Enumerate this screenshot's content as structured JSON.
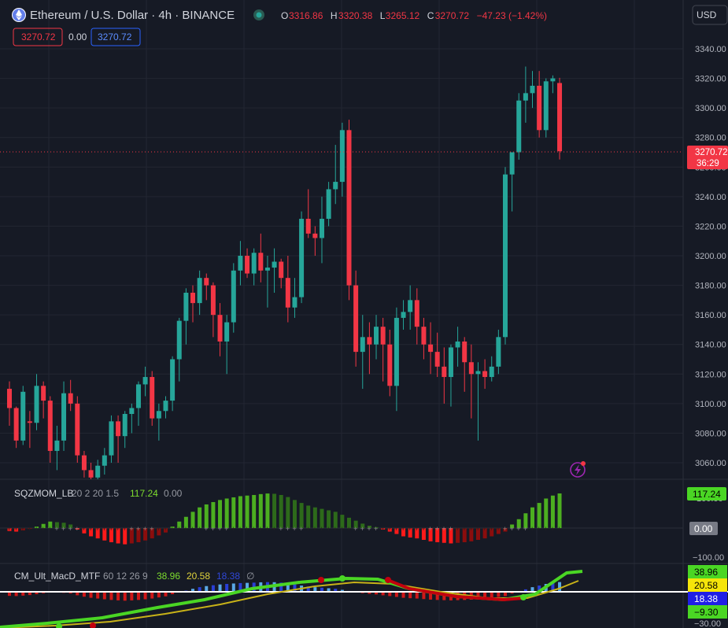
{
  "header": {
    "symbol_title": "Ethereum / U.S. Dollar · 4h · BINANCE",
    "ohlc": [
      {
        "label": "O",
        "value": "3316.86"
      },
      {
        "label": "H",
        "value": "3320.38"
      },
      {
        "label": "L",
        "value": "3265.12"
      },
      {
        "label": "C",
        "value": "3270.72"
      },
      {
        "label": "",
        "value": "−47.23 (−1.42%)"
      }
    ],
    "currency": "USD",
    "sell_price": "3270.72",
    "spread": "0.00",
    "buy_price": "3270.72"
  },
  "price_axis": {
    "ticks": [
      "3340.00",
      "3320.00",
      "3300.00",
      "3280.00",
      "3260.00",
      "3240.00",
      "3220.00",
      "3200.00",
      "3180.00",
      "3160.00",
      "3140.00",
      "3120.00",
      "3100.00",
      "3080.00",
      "3060.00"
    ],
    "last_price": "3270.72",
    "countdown": "36:29"
  },
  "colors": {
    "up": "#26a69a",
    "down": "#f23645",
    "background": "#161a25",
    "grid": "#232632"
  },
  "sqzmom": {
    "name": "SQZMOM_LB",
    "params": "20 2 20 1.5",
    "value": "117.24",
    "value2": "0.00",
    "axis_value": "117.24",
    "axis_zero": "0.00",
    "axis_100": "100.00",
    "axis_neg100": "−100.00"
  },
  "macd": {
    "name": "CM_Ult_MacD_MTF",
    "params": "60 12 26 9",
    "v1": "38.96",
    "v2": "20.58",
    "v3": "18.38",
    "v4": "∅",
    "axis": [
      "38.96",
      "20.58",
      "18.38",
      "−9.30",
      "−30.00"
    ]
  },
  "chart_data": {
    "type": "candlestick",
    "series_ohlc": [
      [
        3110,
        3115,
        3085,
        3097
      ],
      [
        3097,
        3098,
        3070,
        3075
      ],
      [
        3075,
        3112,
        3072,
        3108
      ],
      [
        3088,
        3095,
        3070,
        3087
      ],
      [
        3087,
        3120,
        3082,
        3112
      ],
      [
        3112,
        3115,
        3090,
        3102
      ],
      [
        3102,
        3105,
        3060,
        3068
      ],
      [
        3068,
        3085,
        3055,
        3075
      ],
      [
        3075,
        3115,
        3068,
        3107
      ],
      [
        3107,
        3116,
        3095,
        3100
      ],
      [
        3100,
        3105,
        3060,
        3065
      ],
      [
        3065,
        3068,
        3050,
        3055
      ],
      [
        3055,
        3060,
        3040,
        3050
      ],
      [
        3050,
        3062,
        3048,
        3058
      ],
      [
        3058,
        3070,
        3052,
        3065
      ],
      [
        3065,
        3092,
        3060,
        3088
      ],
      [
        3088,
        3092,
        3060,
        3078
      ],
      [
        3078,
        3095,
        3070,
        3093
      ],
      [
        3093,
        3100,
        3080,
        3097
      ],
      [
        3097,
        3115,
        3085,
        3113
      ],
      [
        3113,
        3125,
        3105,
        3118
      ],
      [
        3118,
        3122,
        3085,
        3090
      ],
      [
        3090,
        3100,
        3075,
        3095
      ],
      [
        3095,
        3105,
        3090,
        3102
      ],
      [
        3102,
        3132,
        3095,
        3130
      ],
      [
        3130,
        3158,
        3115,
        3156
      ],
      [
        3156,
        3178,
        3140,
        3175
      ],
      [
        3175,
        3180,
        3155,
        3168
      ],
      [
        3168,
        3190,
        3160,
        3185
      ],
      [
        3185,
        3188,
        3170,
        3180
      ],
      [
        3180,
        3182,
        3145,
        3160
      ],
      [
        3160,
        3168,
        3132,
        3142
      ],
      [
        3142,
        3160,
        3120,
        3155
      ],
      [
        3155,
        3195,
        3148,
        3190
      ],
      [
        3190,
        3210,
        3180,
        3200
      ],
      [
        3200,
        3205,
        3185,
        3188
      ],
      [
        3188,
        3205,
        3180,
        3202
      ],
      [
        3202,
        3215,
        3182,
        3190
      ],
      [
        3190,
        3200,
        3165,
        3192
      ],
      [
        3192,
        3205,
        3175,
        3196
      ],
      [
        3196,
        3198,
        3178,
        3185
      ],
      [
        3185,
        3200,
        3155,
        3165
      ],
      [
        3165,
        3185,
        3158,
        3172
      ],
      [
        3172,
        3230,
        3168,
        3225
      ],
      [
        3225,
        3245,
        3212,
        3215
      ],
      [
        3215,
        3220,
        3200,
        3212
      ],
      [
        3212,
        3240,
        3195,
        3225
      ],
      [
        3225,
        3250,
        3220,
        3245
      ],
      [
        3245,
        3275,
        3235,
        3250
      ],
      [
        3250,
        3290,
        3240,
        3285
      ],
      [
        3285,
        3292,
        3170,
        3180
      ],
      [
        3180,
        3190,
        3125,
        3135
      ],
      [
        3135,
        3160,
        3110,
        3145
      ],
      [
        3145,
        3155,
        3120,
        3140
      ],
      [
        3140,
        3160,
        3130,
        3152
      ],
      [
        3152,
        3158,
        3115,
        3140
      ],
      [
        3140,
        3150,
        3105,
        3112
      ],
      [
        3112,
        3165,
        3095,
        3158
      ],
      [
        3158,
        3170,
        3150,
        3162
      ],
      [
        3162,
        3180,
        3150,
        3170
      ],
      [
        3170,
        3178,
        3140,
        3152
      ],
      [
        3152,
        3158,
        3130,
        3140
      ],
      [
        3140,
        3155,
        3120,
        3135
      ],
      [
        3135,
        3148,
        3118,
        3125
      ],
      [
        3125,
        3138,
        3100,
        3118
      ],
      [
        3118,
        3140,
        3098,
        3138
      ],
      [
        3138,
        3152,
        3125,
        3142
      ],
      [
        3142,
        3145,
        3108,
        3128
      ],
      [
        3128,
        3140,
        3090,
        3120
      ],
      [
        3120,
        3128,
        3075,
        3122
      ],
      [
        3122,
        3130,
        3110,
        3118
      ],
      [
        3118,
        3132,
        3115,
        3125
      ],
      [
        3125,
        3150,
        3120,
        3145
      ],
      [
        3145,
        3260,
        3140,
        3255
      ],
      [
        3255,
        3270,
        3230,
        3270
      ],
      [
        3270,
        3310,
        3265,
        3305
      ],
      [
        3305,
        3328,
        3290,
        3310
      ],
      [
        3310,
        3325,
        3300,
        3315
      ],
      [
        3315,
        3325,
        3280,
        3285
      ],
      [
        3285,
        3320,
        3280,
        3318
      ],
      [
        3318,
        3322,
        3310,
        3320
      ],
      [
        3316.86,
        3320.38,
        3265.12,
        3270.72
      ]
    ],
    "ylim": [
      3045,
      3357
    ],
    "sqzmom_values": [
      -10,
      -12,
      -8,
      -3,
      5,
      14,
      22,
      20,
      18,
      12,
      -5,
      -18,
      -28,
      -35,
      -42,
      -48,
      -52,
      -55,
      -52,
      -48,
      -42,
      -35,
      -25,
      -15,
      5,
      22,
      38,
      55,
      70,
      80,
      88,
      95,
      100,
      104,
      108,
      110,
      112,
      115,
      117,
      116,
      112,
      105,
      95,
      85,
      76,
      70,
      65,
      60,
      55,
      45,
      35,
      25,
      15,
      8,
      3,
      -5,
      -12,
      -20,
      -28,
      -32,
      -35,
      -40,
      -45,
      -48,
      -50,
      -52,
      -50,
      -48,
      -45,
      -40,
      -35,
      -28,
      -20,
      -12,
      12,
      30,
      50,
      70,
      85,
      100,
      110,
      117.24
    ]
  }
}
